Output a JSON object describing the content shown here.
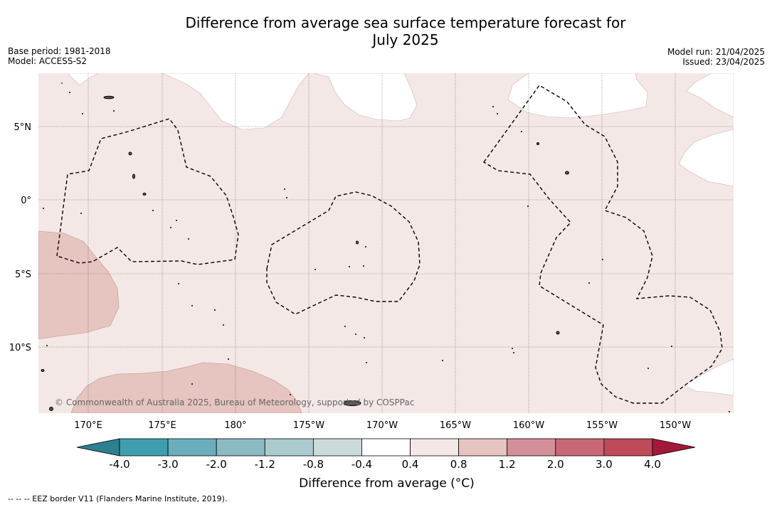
{
  "title_line1": "Difference from average sea surface temperature forecast for",
  "title_line2": "July 2025",
  "base_period": "Base period: 1981-2018",
  "model": "Model: ACCESS-S2",
  "model_run": "Model run: 21/04/2025",
  "issued": "Issued: 23/04/2025",
  "latitude_labels": [
    "5°N",
    "0°",
    "5°S",
    "10°S"
  ],
  "longitude_labels": [
    "170°E",
    "175°E",
    "180°",
    "175°W",
    "170°W",
    "165°W",
    "160°W",
    "155°W",
    "150°W"
  ],
  "copyright": "© Commonwealth of Australia 2025, Bureau of Meteorology, supported by COSPPac",
  "colorbar": {
    "ticks": [
      "-4.0",
      "-3.0",
      "-2.0",
      "-1.2",
      "-0.8",
      "-0.4",
      "0.4",
      "0.8",
      "1.2",
      "2.0",
      "3.0",
      "4.0"
    ],
    "colors": [
      "#3f9eae",
      "#6aaebb",
      "#8cbac3",
      "#abcbce",
      "#cbdbdb",
      "#ffffff",
      "#f4e8e6",
      "#e6c4c0",
      "#d4909a",
      "#c86874",
      "#be4a5a"
    ],
    "under_color": "#2d8090",
    "over_color": "#a3183a",
    "label": "Difference from average (°C)"
  },
  "colors": {
    "anomaly_0_4_to_0_8": "#f4e8e6",
    "anomaly_0_8_to_1_2": "#e6c4c0",
    "eez_border": "#000000"
  },
  "footer": "--  --  -- EEZ border V11 (Flanders Marine Institute, 2019)."
}
